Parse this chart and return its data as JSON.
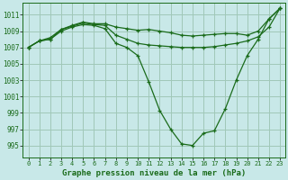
{
  "background_color": "#c8e8e8",
  "grid_color": "#a0c8b8",
  "line_color": "#1a6b1a",
  "xlabel": "Graphe pression niveau de la mer (hPa)",
  "xlim": [
    -0.5,
    23.5
  ],
  "ylim": [
    993.5,
    1012.5
  ],
  "yticks": [
    995,
    997,
    999,
    1001,
    1003,
    1005,
    1007,
    1009,
    1011
  ],
  "xticks": [
    0,
    1,
    2,
    3,
    4,
    5,
    6,
    7,
    8,
    9,
    10,
    11,
    12,
    13,
    14,
    15,
    16,
    17,
    18,
    19,
    20,
    21,
    22,
    23
  ],
  "series": [
    {
      "x": [
        0,
        1,
        2,
        3,
        4,
        5,
        6,
        7,
        8,
        9,
        10,
        11,
        12,
        13,
        14,
        15,
        16,
        17,
        18,
        19,
        20,
        21,
        22,
        23
      ],
      "y": [
        1007.0,
        1007.8,
        1008.0,
        1009.2,
        1009.7,
        1010.1,
        1009.9,
        1009.9,
        1009.5,
        1009.3,
        1009.1,
        1009.2,
        1009.0,
        1008.8,
        1008.5,
        1008.4,
        1008.5,
        1008.6,
        1008.7,
        1008.7,
        1008.5,
        1009.0,
        1010.5,
        1011.8
      ]
    },
    {
      "x": [
        0,
        1,
        2,
        3,
        4,
        5,
        6,
        7,
        8,
        9,
        10,
        11,
        12,
        13,
        14,
        15,
        16,
        17,
        18,
        19,
        20,
        21,
        22,
        23
      ],
      "y": [
        1007.0,
        1007.8,
        1008.2,
        1009.2,
        1009.6,
        1010.0,
        1009.8,
        1009.7,
        1008.5,
        1008.0,
        1007.5,
        1007.3,
        1007.2,
        1007.1,
        1007.0,
        1007.0,
        1007.0,
        1007.1,
        1007.3,
        1007.5,
        1007.8,
        1008.3,
        1009.5,
        1011.8
      ]
    },
    {
      "x": [
        0,
        1,
        2,
        3,
        4,
        5,
        6,
        7,
        8,
        9,
        10,
        11,
        12,
        13,
        14,
        15,
        16,
        17,
        18,
        19,
        20,
        21,
        22,
        23
      ],
      "y": [
        1007.0,
        1007.8,
        1008.0,
        1009.0,
        1009.5,
        1009.8,
        1009.7,
        1009.3,
        1007.5,
        1007.0,
        1006.0,
        1002.8,
        999.3,
        997.0,
        995.2,
        995.0,
        996.5,
        996.8,
        999.5,
        1003.0,
        1006.0,
        1008.0,
        1010.5,
        1011.8
      ]
    }
  ]
}
